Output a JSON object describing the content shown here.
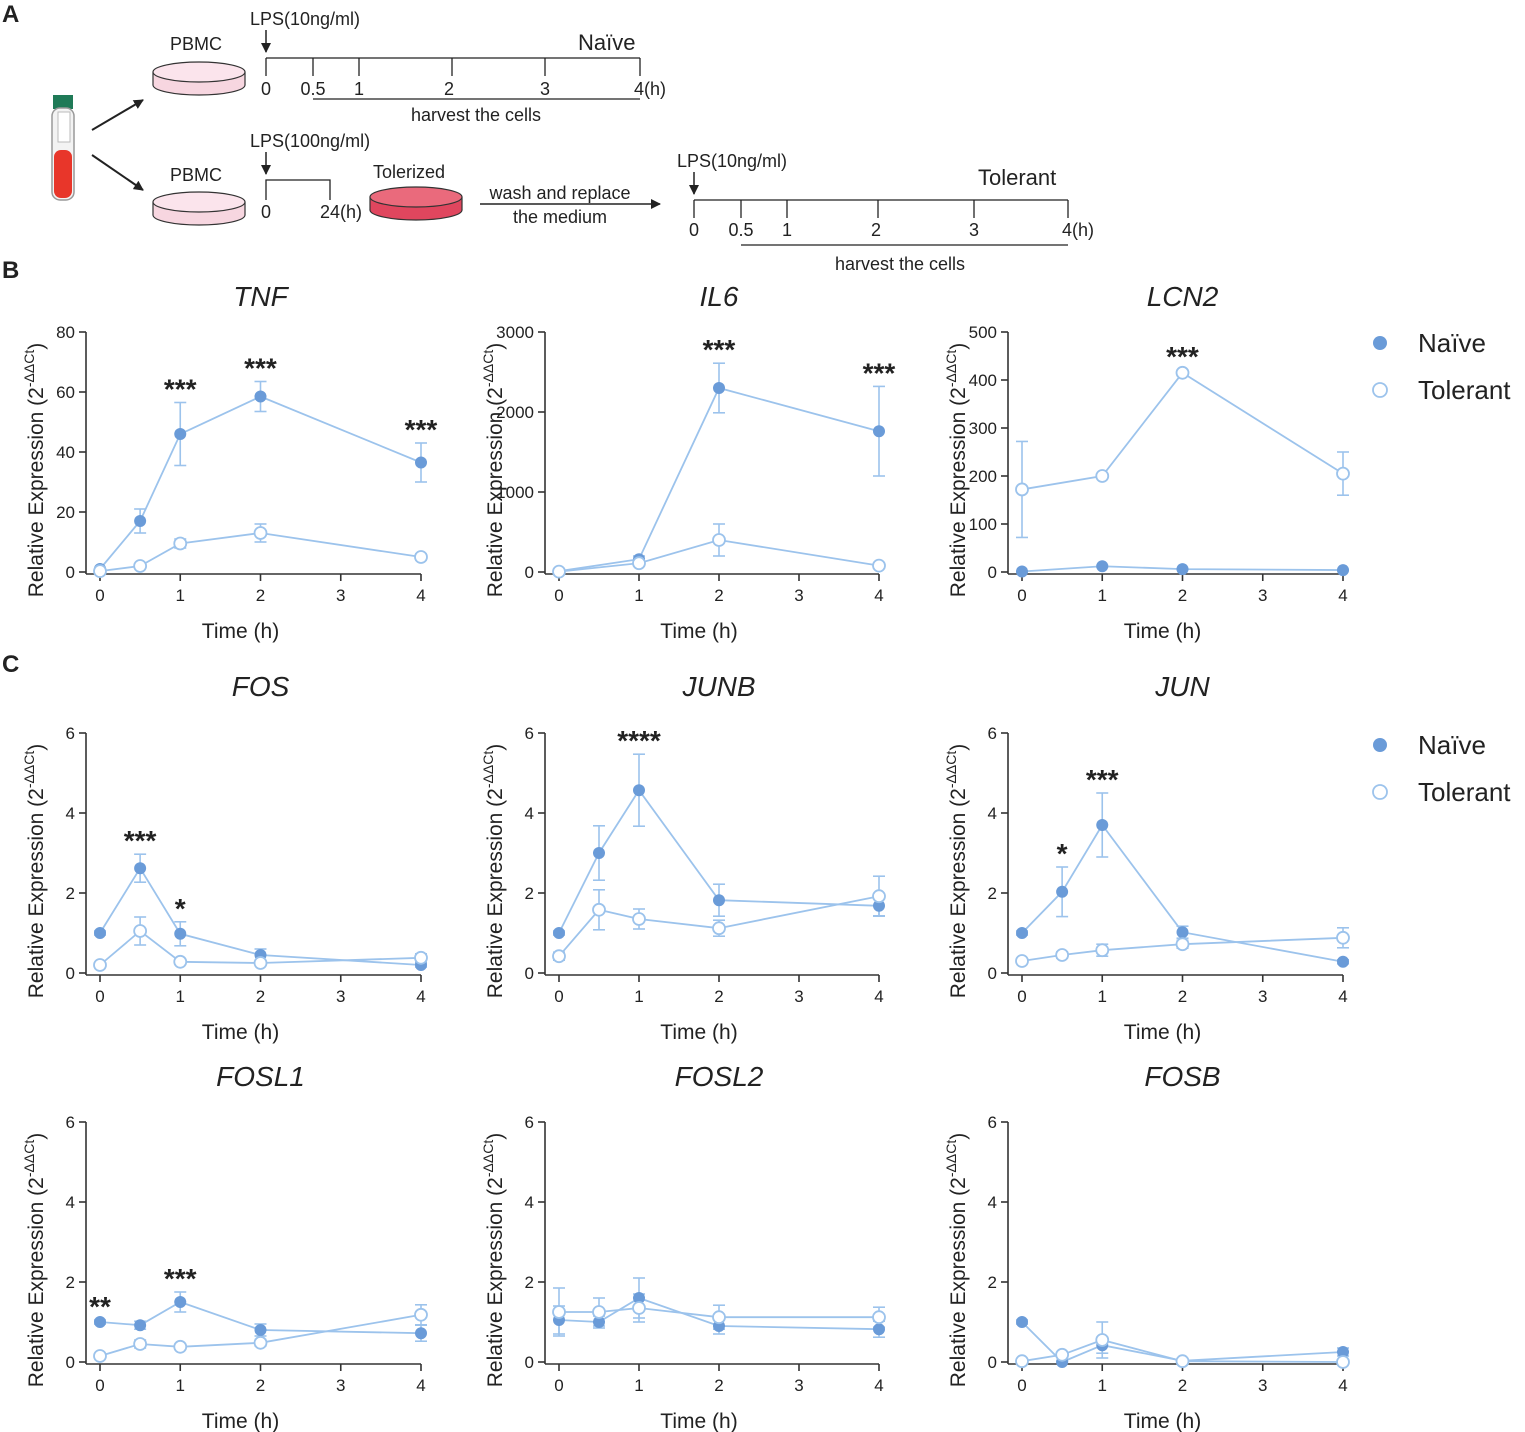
{
  "panel_labels": [
    "A",
    "B",
    "C"
  ],
  "colors": {
    "series": "#6a9bd8",
    "line": "#9cc3ec",
    "axis": "#333333",
    "dish_light": "#f5cbd8",
    "dish_dark": "#e0465e",
    "tube": "#e8362a"
  },
  "schematic": {
    "naive": {
      "lps": "LPS(10ng/ml)",
      "pbmc": "PBMC",
      "label": "Naïve",
      "ticks": [
        "0",
        "0.5",
        "1",
        "2",
        "3",
        "4(h)"
      ],
      "harvest": "harvest the cells"
    },
    "tolerance_step": {
      "lps": "LPS(100ng/ml)",
      "pbmc": "PBMC",
      "start": "0",
      "end": "24(h)",
      "tolerized": "Tolerized",
      "wash_line1": "wash and replace",
      "wash_line2": "the medium"
    },
    "tolerant": {
      "lps": "LPS(10ng/ml)",
      "label": "Tolerant",
      "ticks": [
        "0",
        "0.5",
        "1",
        "2",
        "3",
        "4(h)"
      ],
      "harvest": "harvest the cells"
    }
  },
  "legend": {
    "naive": "Naïve",
    "tolerant": "Tolerant"
  },
  "axis_text": {
    "xlabel": "Time (h)",
    "ylabel_prefix": "Relative Expression (2",
    "ylabel_sup": "-ΔΔCt",
    "ylabel_suffix": ")"
  },
  "chart_data": [
    {
      "type": "line",
      "title": "TNF",
      "xlabel": "Time (h)",
      "ylabel": "Relative Expression (2^-ΔΔCt)",
      "x": [
        0,
        0.5,
        1,
        2,
        4
      ],
      "xticks": [
        0,
        1,
        2,
        3,
        4
      ],
      "ylim": [
        0,
        80
      ],
      "yticks": [
        0,
        20,
        40,
        60,
        80
      ],
      "series": [
        {
          "name": "Naïve",
          "values": [
            1,
            17,
            46,
            58.5,
            36.5
          ],
          "errors": [
            0.5,
            4,
            10.5,
            5,
            6.5
          ]
        },
        {
          "name": "Tolerant",
          "values": [
            0.3,
            2,
            9.5,
            13,
            5
          ],
          "errors": [
            0.2,
            0.5,
            1.5,
            3,
            1
          ]
        }
      ],
      "annotations": [
        {
          "x": 1,
          "text": "***"
        },
        {
          "x": 2,
          "text": "***"
        },
        {
          "x": 4,
          "text": "***"
        }
      ]
    },
    {
      "type": "line",
      "title": "IL6",
      "xlabel": "Time (h)",
      "ylabel": "Relative Expression (2^-ΔΔCt)",
      "x": [
        0,
        1,
        2,
        4
      ],
      "xticks": [
        0,
        1,
        2,
        3,
        4
      ],
      "ylim": [
        0,
        3000
      ],
      "yticks": [
        0,
        1000,
        2000,
        3000
      ],
      "series": [
        {
          "name": "Naïve",
          "values": [
            10,
            160,
            2300,
            1760
          ],
          "errors": [
            5,
            40,
            310,
            560
          ]
        },
        {
          "name": "Tolerant",
          "values": [
            5,
            110,
            400,
            80
          ],
          "errors": [
            5,
            20,
            200,
            20
          ]
        }
      ],
      "annotations": [
        {
          "x": 2,
          "text": "***"
        },
        {
          "x": 4,
          "text": "***"
        }
      ]
    },
    {
      "type": "line",
      "title": "LCN2",
      "xlabel": "Time (h)",
      "ylabel": "Relative Expression (2^-ΔΔCt)",
      "x": [
        0,
        1,
        2,
        4
      ],
      "xticks": [
        0,
        1,
        2,
        3,
        4
      ],
      "ylim": [
        0,
        500
      ],
      "yticks": [
        0,
        100,
        200,
        300,
        400,
        500
      ],
      "series": [
        {
          "name": "Naïve",
          "values": [
            1,
            12,
            6,
            4
          ],
          "errors": [
            1,
            2,
            1,
            1
          ]
        },
        {
          "name": "Tolerant",
          "values": [
            172,
            200,
            415,
            205
          ],
          "errors": [
            100,
            4,
            6,
            45
          ]
        }
      ],
      "annotations": [
        {
          "x": 2,
          "text": "***"
        }
      ]
    },
    {
      "type": "line",
      "title": "FOS",
      "xlabel": "Time (h)",
      "ylabel": "Relative Expression (2^-ΔΔCt)",
      "x": [
        0,
        0.5,
        1,
        2,
        4
      ],
      "xticks": [
        0,
        1,
        2,
        3,
        4
      ],
      "ylim": [
        0,
        6
      ],
      "yticks": [
        0,
        2,
        4,
        6
      ],
      "series": [
        {
          "name": "Naïve",
          "values": [
            1.0,
            2.62,
            0.98,
            0.45,
            0.2
          ],
          "errors": [
            0.05,
            0.35,
            0.3,
            0.15,
            0.05
          ]
        },
        {
          "name": "Tolerant",
          "values": [
            0.2,
            1.05,
            0.28,
            0.25,
            0.38
          ],
          "errors": [
            0.05,
            0.35,
            0.05,
            0.05,
            0.1
          ]
        }
      ],
      "annotations": [
        {
          "x": 0.5,
          "text": "***"
        },
        {
          "x": 1,
          "text": "*"
        }
      ]
    },
    {
      "type": "line",
      "title": "JUNB",
      "xlabel": "Time (h)",
      "ylabel": "Relative Expression (2^-ΔΔCt)",
      "x": [
        0,
        0.5,
        1,
        2,
        4
      ],
      "xticks": [
        0,
        1,
        2,
        3,
        4
      ],
      "ylim": [
        0,
        6
      ],
      "yticks": [
        0,
        2,
        4,
        6
      ],
      "series": [
        {
          "name": "Naïve",
          "values": [
            1.0,
            3.0,
            4.57,
            1.82,
            1.68
          ],
          "errors": [
            0.05,
            0.68,
            0.9,
            0.4,
            0.25
          ]
        },
        {
          "name": "Tolerant",
          "values": [
            0.42,
            1.58,
            1.35,
            1.12,
            1.92
          ],
          "errors": [
            0.1,
            0.5,
            0.25,
            0.2,
            0.5
          ]
        }
      ],
      "annotations": [
        {
          "x": 1,
          "text": "****"
        }
      ]
    },
    {
      "type": "line",
      "title": "JUN",
      "xlabel": "Time (h)",
      "ylabel": "Relative Expression (2^-ΔΔCt)",
      "x": [
        0,
        0.5,
        1,
        2,
        4
      ],
      "xticks": [
        0,
        1,
        2,
        3,
        4
      ],
      "ylim": [
        0,
        6
      ],
      "yticks": [
        0,
        2,
        4,
        6
      ],
      "series": [
        {
          "name": "Naïve",
          "values": [
            1.0,
            2.03,
            3.7,
            1.02,
            0.28
          ],
          "errors": [
            0.05,
            0.62,
            0.8,
            0.15,
            0.05
          ]
        },
        {
          "name": "Tolerant",
          "values": [
            0.3,
            0.45,
            0.57,
            0.72,
            0.88
          ],
          "errors": [
            0.05,
            0.08,
            0.15,
            0.1,
            0.25
          ]
        }
      ],
      "annotations": [
        {
          "x": 0.5,
          "text": "*"
        },
        {
          "x": 1,
          "text": "***"
        }
      ]
    },
    {
      "type": "line",
      "title": "FOSL1",
      "xlabel": "Time (h)",
      "ylabel": "Relative Expression (2^-ΔΔCt)",
      "x": [
        0,
        0.5,
        1,
        2,
        4
      ],
      "xticks": [
        0,
        1,
        2,
        3,
        4
      ],
      "ylim": [
        0,
        6
      ],
      "yticks": [
        0,
        2,
        4,
        6
      ],
      "series": [
        {
          "name": "Naïve",
          "values": [
            1.0,
            0.92,
            1.5,
            0.8,
            0.72
          ],
          "errors": [
            0.05,
            0.1,
            0.25,
            0.15,
            0.2
          ]
        },
        {
          "name": "Tolerant",
          "values": [
            0.15,
            0.45,
            0.38,
            0.48,
            1.18
          ],
          "errors": [
            0.05,
            0.1,
            0.05,
            0.08,
            0.25
          ]
        }
      ],
      "annotations": [
        {
          "x": 0,
          "text": "**"
        },
        {
          "x": 1,
          "text": "***"
        }
      ]
    },
    {
      "type": "line",
      "title": "FOSL2",
      "xlabel": "Time (h)",
      "ylabel": "Relative Expression (2^-ΔΔCt)",
      "x": [
        0,
        0.5,
        1,
        2,
        4
      ],
      "xticks": [
        0,
        1,
        2,
        3,
        4
      ],
      "ylim": [
        0,
        6
      ],
      "yticks": [
        0,
        2,
        4,
        6
      ],
      "series": [
        {
          "name": "Naïve",
          "values": [
            1.05,
            1.0,
            1.6,
            0.9,
            0.82
          ],
          "errors": [
            0.35,
            0.15,
            0.5,
            0.2,
            0.2
          ]
        },
        {
          "name": "Tolerant",
          "values": [
            1.25,
            1.25,
            1.35,
            1.12,
            1.12
          ],
          "errors": [
            0.6,
            0.35,
            0.35,
            0.3,
            0.25
          ]
        }
      ],
      "annotations": []
    },
    {
      "type": "line",
      "title": "FOSB",
      "xlabel": "Time (h)",
      "ylabel": "Relative Expression (2^-ΔΔCt)",
      "x": [
        0,
        0.5,
        1,
        2,
        4
      ],
      "xticks": [
        0,
        1,
        2,
        3,
        4
      ],
      "ylim": [
        0,
        6
      ],
      "yticks": [
        0,
        2,
        4,
        6
      ],
      "series": [
        {
          "name": "Naïve",
          "values": [
            1.0,
            0.0,
            0.42,
            0.03,
            0.25
          ],
          "errors": [
            0.05,
            0.02,
            0.2,
            0.02,
            0.1
          ]
        },
        {
          "name": "Tolerant",
          "values": [
            0.02,
            0.18,
            0.55,
            0.02,
            0.0
          ],
          "errors": [
            0.02,
            0.05,
            0.45,
            0.02,
            0.02
          ]
        }
      ],
      "annotations": []
    }
  ]
}
